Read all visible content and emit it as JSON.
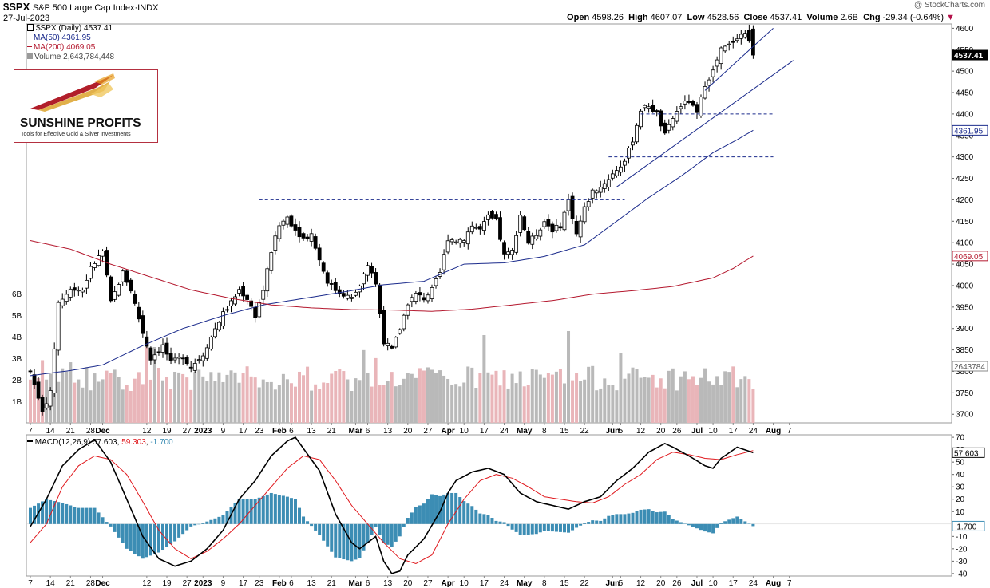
{
  "header": {
    "symbol": "$SPX",
    "description": "S&P 500 Large Cap Index",
    "exchange": "INDX",
    "date": "27-Jul-2023",
    "watermark": "@ StockCharts.com",
    "open_label": "Open",
    "open": "4598.26",
    "high_label": "High",
    "high": "4607.07",
    "low_label": "Low",
    "low": "4528.56",
    "close_label": "Close",
    "close": "4537.41",
    "volume_label": "Volume",
    "volume": "2.6B",
    "chg_label": "Chg",
    "chg": "-29.34 (-0.64%)"
  },
  "legend": {
    "price": "$SPX (Daily) 4537.41",
    "ma50": "MA(50) 4361.95",
    "ma200": "MA(200) 4069.05",
    "volume": "Volume 2,643,784,448"
  },
  "logo": {
    "brand": "SUNSHINE PROFITS",
    "tagline": "Tools for Effective Gold & Silver Investments"
  },
  "macd_legend": {
    "label": "MACD(12,26,9)",
    "macd": "57.603",
    "signal": "59.303",
    "hist": "-1.700"
  },
  "colors": {
    "up": "#ffffff",
    "down": "#000000",
    "ma50": "#1b2b8c",
    "ma200": "#b4182e",
    "vol_up": "#b9b9b9",
    "vol_down": "#e9b5b9",
    "hist": "#3c8db4",
    "macd": "#000000",
    "signal": "#e0191e",
    "trend": "#1b2b8c",
    "last_price_box": "#000000"
  },
  "chart_data": {
    "type": "candlestick",
    "price_axis": {
      "min": 3680,
      "max": 4610,
      "ticks": [
        3700,
        3750,
        3800,
        3850,
        3900,
        3950,
        4000,
        4050,
        4100,
        4150,
        4200,
        4250,
        4300,
        4350,
        4400,
        4450,
        4500,
        4550,
        4600
      ]
    },
    "price_tags": {
      "close": "4537.41",
      "ma50": "4361.95",
      "ma200": "4069.05",
      "volume": "2643784"
    },
    "volume_axis": {
      "ticks": [
        "1B",
        "2B",
        "3B",
        "4B",
        "5B",
        "6B"
      ]
    },
    "x_labels": [
      {
        "t": "7",
        "i": 0
      },
      {
        "t": "14",
        "i": 5
      },
      {
        "t": "21",
        "i": 10
      },
      {
        "t": "28",
        "i": 15
      },
      {
        "t": "Dec",
        "i": 18,
        "b": 1
      },
      {
        "t": "12",
        "i": 29
      },
      {
        "t": "19",
        "i": 34
      },
      {
        "t": "27",
        "i": 39
      },
      {
        "t": "2023",
        "i": 43,
        "b": 1
      },
      {
        "t": "9",
        "i": 48
      },
      {
        "t": "17",
        "i": 53
      },
      {
        "t": "23",
        "i": 57
      },
      {
        "t": "Feb",
        "i": 62,
        "b": 1
      },
      {
        "t": "6",
        "i": 65
      },
      {
        "t": "13",
        "i": 70
      },
      {
        "t": "21",
        "i": 75
      },
      {
        "t": "Mar",
        "i": 81,
        "b": 1
      },
      {
        "t": "6",
        "i": 84
      },
      {
        "t": "13",
        "i": 89
      },
      {
        "t": "20",
        "i": 94
      },
      {
        "t": "27",
        "i": 99
      },
      {
        "t": "Apr",
        "i": 104,
        "b": 1
      },
      {
        "t": "10",
        "i": 108
      },
      {
        "t": "17",
        "i": 113
      },
      {
        "t": "24",
        "i": 118
      },
      {
        "t": "May",
        "i": 123,
        "b": 1
      },
      {
        "t": "8",
        "i": 128
      },
      {
        "t": "15",
        "i": 133
      },
      {
        "t": "22",
        "i": 138
      },
      {
        "t": "Jun",
        "i": 145,
        "b": 1
      },
      {
        "t": "5",
        "i": 147
      },
      {
        "t": "12",
        "i": 152
      },
      {
        "t": "20",
        "i": 157
      },
      {
        "t": "26",
        "i": 161
      },
      {
        "t": "Jul",
        "i": 166,
        "b": 1
      },
      {
        "t": "10",
        "i": 170
      },
      {
        "t": "17",
        "i": 175
      },
      {
        "t": "24",
        "i": 180
      },
      {
        "t": "Aug",
        "i": 185,
        "b": 1
      },
      {
        "t": "7",
        "i": 189
      }
    ],
    "anchors": [
      [
        0,
        3800
      ],
      [
        3,
        3710
      ],
      [
        5,
        3750
      ],
      [
        7,
        3960
      ],
      [
        10,
        3990
      ],
      [
        13,
        3990
      ],
      [
        15,
        4040
      ],
      [
        18,
        4080
      ],
      [
        20,
        3960
      ],
      [
        23,
        4030
      ],
      [
        25,
        3990
      ],
      [
        28,
        3890
      ],
      [
        30,
        3830
      ],
      [
        33,
        3860
      ],
      [
        35,
        3820
      ],
      [
        38,
        3835
      ],
      [
        40,
        3810
      ],
      [
        42,
        3830
      ],
      [
        43,
        3840
      ],
      [
        46,
        3900
      ],
      [
        48,
        3935
      ],
      [
        50,
        3960
      ],
      [
        52,
        3990
      ],
      [
        54,
        3970
      ],
      [
        56,
        3930
      ],
      [
        58,
        3990
      ],
      [
        60,
        4080
      ],
      [
        62,
        4140
      ],
      [
        64,
        4160
      ],
      [
        66,
        4130
      ],
      [
        68,
        4110
      ],
      [
        70,
        4120
      ],
      [
        72,
        4060
      ],
      [
        74,
        4010
      ],
      [
        76,
        3990
      ],
      [
        78,
        3980
      ],
      [
        80,
        3970
      ],
      [
        82,
        4000
      ],
      [
        84,
        4050
      ],
      [
        86,
        4000
      ],
      [
        88,
        3870
      ],
      [
        90,
        3850
      ],
      [
        92,
        3900
      ],
      [
        94,
        3960
      ],
      [
        96,
        3980
      ],
      [
        98,
        3970
      ],
      [
        100,
        3990
      ],
      [
        102,
        4030
      ],
      [
        104,
        4110
      ],
      [
        106,
        4105
      ],
      [
        108,
        4110
      ],
      [
        110,
        4140
      ],
      [
        112,
        4130
      ],
      [
        114,
        4160
      ],
      [
        116,
        4150
      ],
      [
        118,
        4070
      ],
      [
        120,
        4080
      ],
      [
        122,
        4165
      ],
      [
        124,
        4100
      ],
      [
        126,
        4120
      ],
      [
        128,
        4150
      ],
      [
        130,
        4130
      ],
      [
        132,
        4140
      ],
      [
        134,
        4200
      ],
      [
        136,
        4120
      ],
      [
        138,
        4180
      ],
      [
        140,
        4220
      ],
      [
        142,
        4230
      ],
      [
        144,
        4250
      ],
      [
        146,
        4270
      ],
      [
        148,
        4290
      ],
      [
        150,
        4340
      ],
      [
        152,
        4410
      ],
      [
        154,
        4420
      ],
      [
        156,
        4400
      ],
      [
        158,
        4350
      ],
      [
        160,
        4390
      ],
      [
        162,
        4420
      ],
      [
        164,
        4430
      ],
      [
        166,
        4400
      ],
      [
        168,
        4470
      ],
      [
        170,
        4500
      ],
      [
        172,
        4550
      ],
      [
        174,
        4560
      ],
      [
        176,
        4580
      ],
      [
        178,
        4590
      ],
      [
        179,
        4566
      ],
      [
        180,
        4537
      ]
    ],
    "ma50": [
      [
        0,
        3790
      ],
      [
        10,
        3802
      ],
      [
        18,
        3815
      ],
      [
        28,
        3860
      ],
      [
        38,
        3900
      ],
      [
        48,
        3930
      ],
      [
        58,
        3955
      ],
      [
        68,
        3970
      ],
      [
        78,
        3985
      ],
      [
        88,
        4002
      ],
      [
        98,
        4010
      ],
      [
        108,
        4050
      ],
      [
        118,
        4053
      ],
      [
        128,
        4068
      ],
      [
        138,
        4095
      ],
      [
        146,
        4150
      ],
      [
        154,
        4205
      ],
      [
        162,
        4255
      ],
      [
        170,
        4310
      ],
      [
        176,
        4340
      ],
      [
        180,
        4362
      ]
    ],
    "ma200": [
      [
        0,
        4105
      ],
      [
        10,
        4085
      ],
      [
        20,
        4050
      ],
      [
        30,
        4020
      ],
      [
        40,
        3990
      ],
      [
        50,
        3970
      ],
      [
        60,
        3955
      ],
      [
        70,
        3948
      ],
      [
        80,
        3944
      ],
      [
        90,
        3943
      ],
      [
        100,
        3940
      ],
      [
        110,
        3945
      ],
      [
        120,
        3955
      ],
      [
        130,
        3965
      ],
      [
        140,
        3980
      ],
      [
        146,
        3985
      ],
      [
        150,
        3988
      ],
      [
        160,
        3998
      ],
      [
        170,
        4018
      ],
      [
        175,
        4040
      ],
      [
        180,
        4069
      ]
    ],
    "horizontal_levels": [
      {
        "y": 4200,
        "from": 57,
        "to": 148
      },
      {
        "y": 4300,
        "from": 144,
        "to": 185
      },
      {
        "y": 4400,
        "from": 152,
        "to": 185
      }
    ],
    "trendlines": [
      {
        "from": [
          146,
          4230
        ],
        "to": [
          190,
          4525
        ]
      },
      {
        "from": [
          168,
          4455
        ],
        "to": [
          185,
          4600
        ]
      }
    ],
    "macd_axis": {
      "min": -42,
      "max": 72,
      "ticks": [
        -40,
        -30,
        -20,
        -10,
        10,
        20,
        30,
        40,
        50,
        60,
        70
      ]
    },
    "macd_tags": {
      "macd": "57.603",
      "hist": "-1.700"
    },
    "macd": [
      [
        0,
        -2
      ],
      [
        4,
        20
      ],
      [
        8,
        47
      ],
      [
        12,
        60
      ],
      [
        16,
        68
      ],
      [
        20,
        50
      ],
      [
        24,
        20
      ],
      [
        28,
        -10
      ],
      [
        32,
        -28
      ],
      [
        36,
        -34
      ],
      [
        40,
        -30
      ],
      [
        44,
        -20
      ],
      [
        48,
        -5
      ],
      [
        52,
        20
      ],
      [
        56,
        35
      ],
      [
        60,
        55
      ],
      [
        64,
        67
      ],
      [
        66,
        70
      ],
      [
        70,
        52
      ],
      [
        72,
        43
      ],
      [
        76,
        8
      ],
      [
        80,
        -15
      ],
      [
        82,
        -20
      ],
      [
        84,
        -15
      ],
      [
        86,
        -10
      ],
      [
        88,
        -30
      ],
      [
        90,
        -40
      ],
      [
        92,
        -38
      ],
      [
        94,
        -25
      ],
      [
        98,
        -12
      ],
      [
        102,
        10
      ],
      [
        104,
        25
      ],
      [
        106,
        35
      ],
      [
        110,
        42
      ],
      [
        114,
        45
      ],
      [
        118,
        40
      ],
      [
        122,
        25
      ],
      [
        126,
        18
      ],
      [
        130,
        15
      ],
      [
        134,
        12
      ],
      [
        138,
        18
      ],
      [
        140,
        20
      ],
      [
        142,
        22
      ],
      [
        146,
        35
      ],
      [
        150,
        45
      ],
      [
        154,
        58
      ],
      [
        158,
        65
      ],
      [
        160,
        62
      ],
      [
        164,
        55
      ],
      [
        168,
        47
      ],
      [
        170,
        45
      ],
      [
        172,
        53
      ],
      [
        176,
        62
      ],
      [
        180,
        57.6
      ]
    ],
    "signal": [
      [
        0,
        -15
      ],
      [
        4,
        0
      ],
      [
        8,
        30
      ],
      [
        12,
        47
      ],
      [
        16,
        55
      ],
      [
        20,
        52
      ],
      [
        24,
        40
      ],
      [
        28,
        18
      ],
      [
        32,
        -5
      ],
      [
        36,
        -20
      ],
      [
        40,
        -28
      ],
      [
        44,
        -22
      ],
      [
        48,
        -12
      ],
      [
        52,
        0
      ],
      [
        56,
        15
      ],
      [
        60,
        30
      ],
      [
        64,
        45
      ],
      [
        68,
        55
      ],
      [
        72,
        52
      ],
      [
        76,
        35
      ],
      [
        80,
        15
      ],
      [
        84,
        0
      ],
      [
        88,
        -15
      ],
      [
        92,
        -28
      ],
      [
        96,
        -32
      ],
      [
        100,
        -25
      ],
      [
        104,
        0
      ],
      [
        108,
        20
      ],
      [
        112,
        35
      ],
      [
        116,
        40
      ],
      [
        120,
        37
      ],
      [
        124,
        30
      ],
      [
        128,
        22
      ],
      [
        132,
        20
      ],
      [
        136,
        18
      ],
      [
        140,
        17
      ],
      [
        144,
        22
      ],
      [
        148,
        32
      ],
      [
        152,
        40
      ],
      [
        156,
        52
      ],
      [
        160,
        58
      ],
      [
        164,
        56
      ],
      [
        168,
        53
      ],
      [
        172,
        52
      ],
      [
        176,
        56
      ],
      [
        180,
        59.3
      ]
    ]
  }
}
